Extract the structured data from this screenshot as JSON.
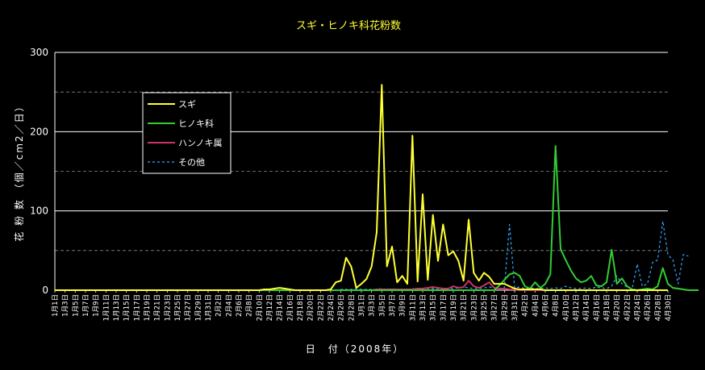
{
  "chart_data": {
    "type": "line",
    "title": "スギ・ヒノキ科花粉数",
    "xlabel": "日　付（2008年）",
    "ylabel": "花 粉 数 （個／cm2／日）",
    "ylim": [
      0,
      300
    ],
    "yticks": [
      0,
      100,
      200,
      300
    ],
    "grid": "major solid, minor dashed",
    "legend_position": "upper-left inside plot",
    "x_tick_labels": [
      "1月1日",
      "1月3日",
      "1月5日",
      "1月7日",
      "1月9日",
      "1月11日",
      "1月13日",
      "1月15日",
      "1月17日",
      "1月19日",
      "1月21日",
      "1月23日",
      "1月25日",
      "1月27日",
      "1月29日",
      "1月31日",
      "2月2日",
      "2月4日",
      "2月6日",
      "2月8日",
      "2月10日",
      "2月12日",
      "2月14日",
      "2月16日",
      "2月18日",
      "2月20日",
      "2月22日",
      "2月24日",
      "2月26日",
      "2月28日",
      "3月1日",
      "3月3日",
      "3月5日",
      "3月7日",
      "3月9日",
      "3月11日",
      "3月13日",
      "3月15日",
      "3月17日",
      "3月19日",
      "3月21日",
      "3月23日",
      "3月25日",
      "3月27日",
      "3月29日",
      "3月31日",
      "4月2日",
      "4月4日",
      "4月6日",
      "4月8日",
      "4月10日",
      "4月12日",
      "4月14日",
      "4月16日",
      "4月18日",
      "4月20日",
      "4月22日",
      "4月24日",
      "4月26日",
      "4月28日",
      "4月30日"
    ],
    "series": [
      {
        "name": "スギ",
        "color": "#ffff33",
        "style": "solid",
        "values": [
          0,
          0,
          0,
          0,
          0,
          0,
          0,
          0,
          0,
          0,
          0,
          0,
          0,
          0,
          0,
          0,
          0,
          0,
          0,
          0,
          0,
          0,
          0,
          0,
          0,
          0,
          0,
          0,
          0,
          0,
          0,
          0,
          0,
          0,
          0,
          0,
          0,
          0,
          0,
          0,
          0,
          1,
          1,
          2,
          3,
          2,
          1,
          0,
          0,
          0,
          0,
          0,
          0,
          0,
          1,
          10,
          12,
          41,
          30,
          3,
          8,
          14,
          30,
          73,
          259,
          30,
          55,
          10,
          18,
          8,
          195,
          11,
          121,
          13,
          95,
          37,
          83,
          44,
          49,
          37,
          12,
          89,
          22,
          12,
          22,
          17,
          8,
          8,
          8,
          5,
          2,
          1,
          1,
          1,
          1,
          1,
          0,
          0,
          0,
          0,
          0,
          0,
          0,
          0,
          0,
          0,
          0,
          0,
          0,
          0,
          0,
          0,
          0,
          0,
          0,
          0,
          0,
          0,
          0,
          0,
          0
        ]
      },
      {
        "name": "ヒノキ科",
        "color": "#33cc33",
        "style": "solid",
        "values": [
          0,
          0,
          0,
          0,
          0,
          0,
          0,
          0,
          0,
          0,
          0,
          0,
          0,
          0,
          0,
          0,
          0,
          0,
          0,
          0,
          0,
          0,
          0,
          0,
          0,
          0,
          0,
          0,
          0,
          0,
          0,
          0,
          0,
          0,
          0,
          0,
          0,
          0,
          0,
          0,
          0,
          0,
          0,
          0,
          0,
          0,
          0,
          0,
          0,
          0,
          0,
          0,
          0,
          0,
          0,
          0,
          0,
          0,
          0,
          0,
          0,
          0,
          0,
          0,
          0,
          0,
          0,
          0,
          0,
          0,
          0,
          0,
          0,
          0,
          0,
          0,
          0,
          0,
          0,
          0,
          0,
          0,
          0,
          0,
          0,
          0,
          0,
          6,
          13,
          20,
          22,
          18,
          5,
          2,
          10,
          3,
          8,
          20,
          182,
          52,
          38,
          25,
          15,
          10,
          12,
          18,
          6,
          5,
          10,
          51,
          8,
          15,
          5,
          1,
          0,
          1,
          2,
          1,
          5,
          28,
          8,
          3,
          2,
          1,
          0,
          0,
          0
        ]
      },
      {
        "name": "ハンノキ属",
        "color": "#cc3366",
        "style": "solid",
        "values": [
          0,
          0,
          0,
          0,
          0,
          0,
          0,
          0,
          0,
          0,
          0,
          0,
          0,
          0,
          0,
          0,
          0,
          0,
          0,
          0,
          0,
          0,
          0,
          0,
          0,
          0,
          0,
          0,
          0,
          0,
          0,
          0,
          0,
          0,
          0,
          0,
          0,
          0,
          0,
          0,
          0,
          0,
          0,
          0,
          0,
          0,
          0,
          0,
          0,
          0,
          0,
          0,
          0,
          0,
          0,
          0,
          0,
          0,
          0,
          0,
          0,
          0,
          0,
          1,
          1,
          1,
          1,
          1,
          1,
          1,
          1,
          2,
          2,
          3,
          4,
          3,
          2,
          2,
          5,
          3,
          4,
          12,
          5,
          3,
          6,
          10,
          3,
          2,
          2,
          1,
          1,
          0,
          0,
          0,
          0,
          0,
          0,
          0,
          0,
          0,
          0,
          0,
          0,
          0,
          0,
          0,
          0,
          0,
          0,
          0,
          0,
          0,
          0,
          0,
          0,
          0,
          0,
          0,
          0,
          0,
          0
        ]
      },
      {
        "name": "その他",
        "color": "#33aaff",
        "style": "dotted",
        "values": [
          0,
          0,
          0,
          0,
          0,
          0,
          0,
          0,
          0,
          0,
          0,
          0,
          0,
          0,
          0,
          0,
          0,
          0,
          0,
          0,
          0,
          0,
          0,
          0,
          0,
          0,
          0,
          0,
          0,
          0,
          0,
          0,
          0,
          0,
          0,
          0,
          0,
          0,
          0,
          0,
          0,
          0,
          0,
          0,
          0,
          0,
          0,
          0,
          0,
          0,
          0,
          0,
          0,
          0,
          0,
          0,
          1,
          1,
          1,
          2,
          1,
          1,
          1,
          1,
          2,
          1,
          2,
          1,
          1,
          1,
          2,
          1,
          2,
          1,
          2,
          1,
          2,
          2,
          2,
          3,
          4,
          3,
          2,
          2,
          3,
          4,
          3,
          2,
          3,
          83,
          3,
          4,
          2,
          3,
          2,
          2,
          3,
          2,
          3,
          2,
          5,
          3,
          2,
          2,
          3,
          2,
          4,
          3,
          2,
          5,
          18,
          8,
          4,
          2,
          33,
          5,
          8,
          35,
          38,
          87,
          45,
          38,
          8,
          45,
          43
        ]
      }
    ]
  }
}
